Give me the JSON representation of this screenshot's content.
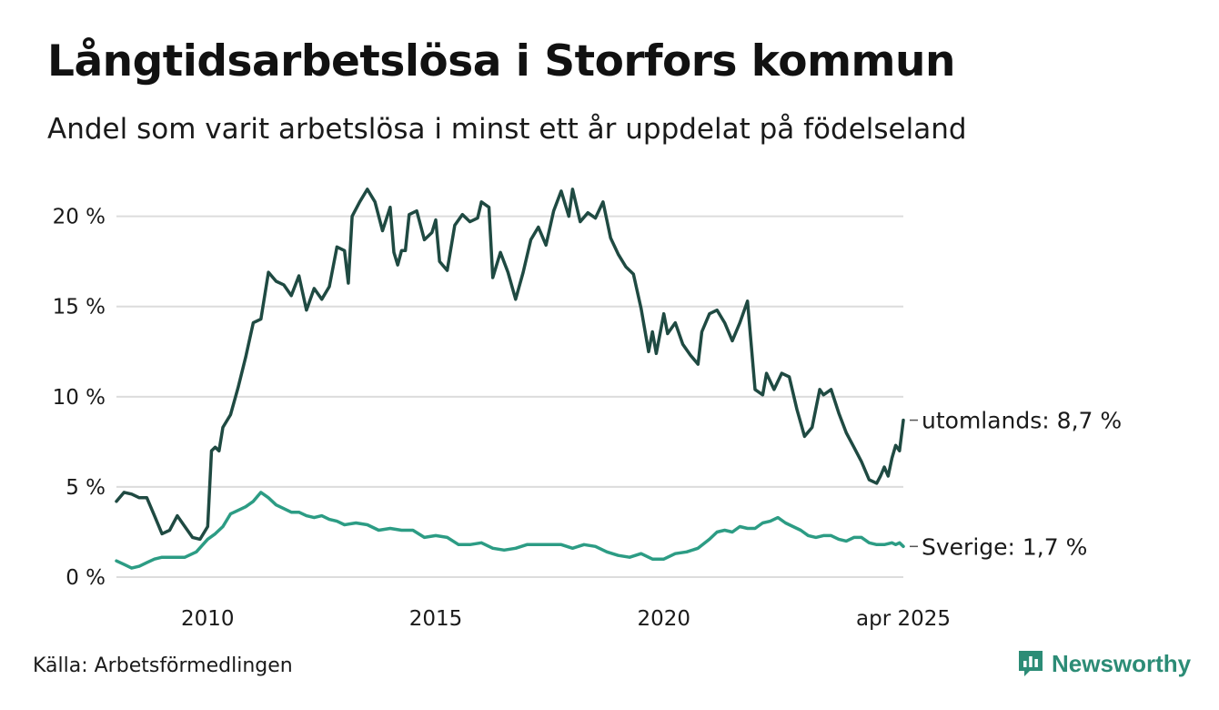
{
  "header": {
    "title": "Långtidsarbetslösa i Storfors kommun",
    "subtitle": "Andel som varit arbetslösa i minst ett år uppdelat på födelseland"
  },
  "footer": {
    "source": "Källa: Arbetsförmedlingen",
    "brand": "Newsworthy",
    "brand_icon": "bar-chart-icon",
    "brand_color": "#2c8c76"
  },
  "chart_data": {
    "type": "line",
    "title": "Långtidsarbetslösa i Storfors kommun",
    "subtitle": "Andel som varit arbetslösa i minst ett år uppdelat på födelseland",
    "xlabel": "",
    "ylabel": "",
    "x_range": [
      "2008-01",
      "2025-04"
    ],
    "ylim": [
      0,
      22
    ],
    "y_ticks": [
      0,
      5,
      10,
      15,
      20
    ],
    "y_tick_labels": [
      "0 %",
      "5 %",
      "10 %",
      "15 %",
      "20 %"
    ],
    "x_ticks": [
      "2010-01",
      "2015-01",
      "2020-01",
      "2025-04"
    ],
    "x_tick_labels": [
      "2010",
      "2015",
      "2020",
      "apr 2025"
    ],
    "grid": "horizontal",
    "legend": "direct labels at line ends",
    "series": [
      {
        "name": "utomlands",
        "end_label": "utomlands: 8,7 %",
        "color": "#1f4a42",
        "points": [
          [
            "2008-01",
            4.2
          ],
          [
            "2008-03",
            4.7
          ],
          [
            "2008-05",
            4.6
          ],
          [
            "2008-07",
            4.4
          ],
          [
            "2008-09",
            4.4
          ],
          [
            "2008-11",
            3.4
          ],
          [
            "2009-01",
            2.4
          ],
          [
            "2009-03",
            2.6
          ],
          [
            "2009-05",
            3.4
          ],
          [
            "2009-07",
            2.8
          ],
          [
            "2009-09",
            2.2
          ],
          [
            "2009-11",
            2.1
          ],
          [
            "2010-01",
            2.8
          ],
          [
            "2010-02",
            7.0
          ],
          [
            "2010-03",
            7.2
          ],
          [
            "2010-04",
            7.0
          ],
          [
            "2010-05",
            8.3
          ],
          [
            "2010-07",
            9.0
          ],
          [
            "2010-09",
            10.5
          ],
          [
            "2010-11",
            12.2
          ],
          [
            "2011-01",
            14.1
          ],
          [
            "2011-03",
            14.3
          ],
          [
            "2011-05",
            16.9
          ],
          [
            "2011-07",
            16.4
          ],
          [
            "2011-09",
            16.2
          ],
          [
            "2011-11",
            15.6
          ],
          [
            "2012-01",
            16.7
          ],
          [
            "2012-03",
            14.8
          ],
          [
            "2012-05",
            16.0
          ],
          [
            "2012-07",
            15.4
          ],
          [
            "2012-09",
            16.1
          ],
          [
            "2012-11",
            18.3
          ],
          [
            "2013-01",
            18.1
          ],
          [
            "2013-02",
            16.3
          ],
          [
            "2013-03",
            20.0
          ],
          [
            "2013-05",
            20.8
          ],
          [
            "2013-07",
            21.5
          ],
          [
            "2013-09",
            20.8
          ],
          [
            "2013-11",
            19.2
          ],
          [
            "2014-01",
            20.5
          ],
          [
            "2014-02",
            18.0
          ],
          [
            "2014-03",
            17.3
          ],
          [
            "2014-04",
            18.1
          ],
          [
            "2014-05",
            18.1
          ],
          [
            "2014-06",
            20.1
          ],
          [
            "2014-08",
            20.3
          ],
          [
            "2014-10",
            18.7
          ],
          [
            "2014-12",
            19.1
          ],
          [
            "2015-01",
            19.8
          ],
          [
            "2015-02",
            17.5
          ],
          [
            "2015-04",
            17.0
          ],
          [
            "2015-06",
            19.5
          ],
          [
            "2015-08",
            20.1
          ],
          [
            "2015-10",
            19.7
          ],
          [
            "2015-12",
            19.9
          ],
          [
            "2016-01",
            20.8
          ],
          [
            "2016-03",
            20.5
          ],
          [
            "2016-04",
            16.6
          ],
          [
            "2016-06",
            18.0
          ],
          [
            "2016-08",
            16.9
          ],
          [
            "2016-10",
            15.4
          ],
          [
            "2016-12",
            16.9
          ],
          [
            "2017-02",
            18.7
          ],
          [
            "2017-04",
            19.4
          ],
          [
            "2017-06",
            18.4
          ],
          [
            "2017-08",
            20.3
          ],
          [
            "2017-10",
            21.4
          ],
          [
            "2017-12",
            20.0
          ],
          [
            "2018-01",
            21.5
          ],
          [
            "2018-03",
            19.7
          ],
          [
            "2018-05",
            20.2
          ],
          [
            "2018-07",
            19.9
          ],
          [
            "2018-09",
            20.8
          ],
          [
            "2018-11",
            18.8
          ],
          [
            "2019-01",
            17.9
          ],
          [
            "2019-03",
            17.2
          ],
          [
            "2019-05",
            16.8
          ],
          [
            "2019-07",
            14.9
          ],
          [
            "2019-09",
            12.5
          ],
          [
            "2019-10",
            13.6
          ],
          [
            "2019-11",
            12.4
          ],
          [
            "2020-01",
            14.6
          ],
          [
            "2020-02",
            13.5
          ],
          [
            "2020-04",
            14.1
          ],
          [
            "2020-06",
            12.9
          ],
          [
            "2020-08",
            12.3
          ],
          [
            "2020-10",
            11.8
          ],
          [
            "2020-11",
            13.6
          ],
          [
            "2021-01",
            14.6
          ],
          [
            "2021-03",
            14.8
          ],
          [
            "2021-05",
            14.1
          ],
          [
            "2021-07",
            13.1
          ],
          [
            "2021-09",
            14.1
          ],
          [
            "2021-11",
            15.3
          ],
          [
            "2022-01",
            10.4
          ],
          [
            "2022-03",
            10.1
          ],
          [
            "2022-04",
            11.3
          ],
          [
            "2022-06",
            10.4
          ],
          [
            "2022-08",
            11.3
          ],
          [
            "2022-10",
            11.1
          ],
          [
            "2022-12",
            9.3
          ],
          [
            "2023-02",
            7.8
          ],
          [
            "2023-04",
            8.3
          ],
          [
            "2023-06",
            10.4
          ],
          [
            "2023-07",
            10.1
          ],
          [
            "2023-09",
            10.4
          ],
          [
            "2023-11",
            9.1
          ],
          [
            "2024-01",
            8.0
          ],
          [
            "2024-03",
            7.2
          ],
          [
            "2024-05",
            6.4
          ],
          [
            "2024-07",
            5.4
          ],
          [
            "2024-09",
            5.2
          ],
          [
            "2024-10",
            5.6
          ],
          [
            "2024-11",
            6.1
          ],
          [
            "2024-12",
            5.6
          ],
          [
            "2025-01",
            6.6
          ],
          [
            "2025-02",
            7.3
          ],
          [
            "2025-03",
            7.0
          ],
          [
            "2025-04",
            8.7
          ]
        ]
      },
      {
        "name": "Sverige",
        "end_label": "Sverige: 1,7 %",
        "color": "#2c9c84",
        "points": [
          [
            "2008-01",
            0.9
          ],
          [
            "2008-03",
            0.7
          ],
          [
            "2008-05",
            0.5
          ],
          [
            "2008-07",
            0.6
          ],
          [
            "2008-09",
            0.8
          ],
          [
            "2008-11",
            1.0
          ],
          [
            "2009-01",
            1.1
          ],
          [
            "2009-04",
            1.1
          ],
          [
            "2009-07",
            1.1
          ],
          [
            "2009-10",
            1.4
          ],
          [
            "2010-01",
            2.1
          ],
          [
            "2010-03",
            2.4
          ],
          [
            "2010-05",
            2.8
          ],
          [
            "2010-07",
            3.5
          ],
          [
            "2010-09",
            3.7
          ],
          [
            "2010-11",
            3.9
          ],
          [
            "2011-01",
            4.2
          ],
          [
            "2011-03",
            4.7
          ],
          [
            "2011-05",
            4.4
          ],
          [
            "2011-07",
            4.0
          ],
          [
            "2011-09",
            3.8
          ],
          [
            "2011-11",
            3.6
          ],
          [
            "2012-01",
            3.6
          ],
          [
            "2012-03",
            3.4
          ],
          [
            "2012-05",
            3.3
          ],
          [
            "2012-07",
            3.4
          ],
          [
            "2012-09",
            3.2
          ],
          [
            "2012-11",
            3.1
          ],
          [
            "2013-01",
            2.9
          ],
          [
            "2013-04",
            3.0
          ],
          [
            "2013-07",
            2.9
          ],
          [
            "2013-10",
            2.6
          ],
          [
            "2014-01",
            2.7
          ],
          [
            "2014-04",
            2.6
          ],
          [
            "2014-07",
            2.6
          ],
          [
            "2014-10",
            2.2
          ],
          [
            "2015-01",
            2.3
          ],
          [
            "2015-04",
            2.2
          ],
          [
            "2015-07",
            1.8
          ],
          [
            "2015-10",
            1.8
          ],
          [
            "2016-01",
            1.9
          ],
          [
            "2016-04",
            1.6
          ],
          [
            "2016-07",
            1.5
          ],
          [
            "2016-10",
            1.6
          ],
          [
            "2017-01",
            1.8
          ],
          [
            "2017-04",
            1.8
          ],
          [
            "2017-07",
            1.8
          ],
          [
            "2017-10",
            1.8
          ],
          [
            "2018-01",
            1.6
          ],
          [
            "2018-04",
            1.8
          ],
          [
            "2018-07",
            1.7
          ],
          [
            "2018-10",
            1.4
          ],
          [
            "2019-01",
            1.2
          ],
          [
            "2019-04",
            1.1
          ],
          [
            "2019-07",
            1.3
          ],
          [
            "2019-10",
            1.0
          ],
          [
            "2020-01",
            1.0
          ],
          [
            "2020-04",
            1.3
          ],
          [
            "2020-07",
            1.4
          ],
          [
            "2020-10",
            1.6
          ],
          [
            "2021-01",
            2.1
          ],
          [
            "2021-03",
            2.5
          ],
          [
            "2021-05",
            2.6
          ],
          [
            "2021-07",
            2.5
          ],
          [
            "2021-09",
            2.8
          ],
          [
            "2021-11",
            2.7
          ],
          [
            "2022-01",
            2.7
          ],
          [
            "2022-03",
            3.0
          ],
          [
            "2022-05",
            3.1
          ],
          [
            "2022-07",
            3.3
          ],
          [
            "2022-09",
            3.0
          ],
          [
            "2022-11",
            2.8
          ],
          [
            "2023-01",
            2.6
          ],
          [
            "2023-03",
            2.3
          ],
          [
            "2023-05",
            2.2
          ],
          [
            "2023-07",
            2.3
          ],
          [
            "2023-09",
            2.3
          ],
          [
            "2023-11",
            2.1
          ],
          [
            "2024-01",
            2.0
          ],
          [
            "2024-03",
            2.2
          ],
          [
            "2024-05",
            2.2
          ],
          [
            "2024-07",
            1.9
          ],
          [
            "2024-09",
            1.8
          ],
          [
            "2024-11",
            1.8
          ],
          [
            "2025-01",
            1.9
          ],
          [
            "2025-02",
            1.8
          ],
          [
            "2025-03",
            1.9
          ],
          [
            "2025-04",
            1.7
          ]
        ]
      }
    ]
  }
}
